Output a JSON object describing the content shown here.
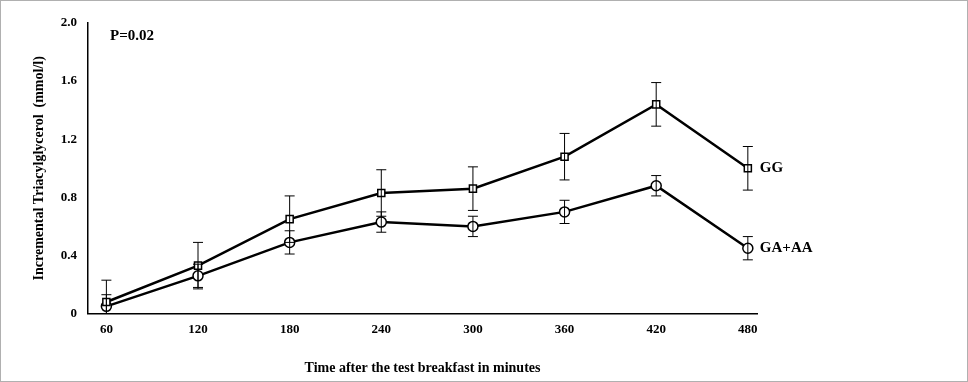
{
  "chart_data": {
    "type": "line",
    "x_label": "Time after the test breakfast in minutes",
    "y_label": "Incremental Triacylglycerol  (mmol/l)",
    "annotation": "P=0.02",
    "x": [
      60,
      120,
      180,
      240,
      300,
      360,
      420,
      480
    ],
    "series": [
      {
        "name": "GG",
        "color": "#000000",
        "marker": "square",
        "line_style": "solid",
        "values": [
          0.08,
          0.33,
          0.65,
          0.83,
          0.86,
          1.08,
          1.44,
          1.0
        ],
        "errors": [
          0.15,
          0.16,
          0.16,
          0.16,
          0.15,
          0.16,
          0.15,
          0.15
        ]
      },
      {
        "name": "GA+AA",
        "color": "#000000",
        "marker": "circle",
        "line_style": "solid",
        "values": [
          0.05,
          0.26,
          0.49,
          0.63,
          0.6,
          0.7,
          0.88,
          0.45
        ],
        "errors": [
          0.08,
          0.08,
          0.08,
          0.07,
          0.07,
          0.08,
          0.07,
          0.08
        ]
      }
    ],
    "xlim": [
      48,
      486
    ],
    "xticks": [
      60,
      120,
      180,
      240,
      300,
      360,
      420,
      480
    ],
    "ylim": [
      0,
      2
    ],
    "yticks": [
      0,
      0.4,
      0.8,
      1.2,
      1.6,
      {
        "value": 2,
        "label": "2.0"
      }
    ],
    "grid": false,
    "tick_labels": true
  }
}
